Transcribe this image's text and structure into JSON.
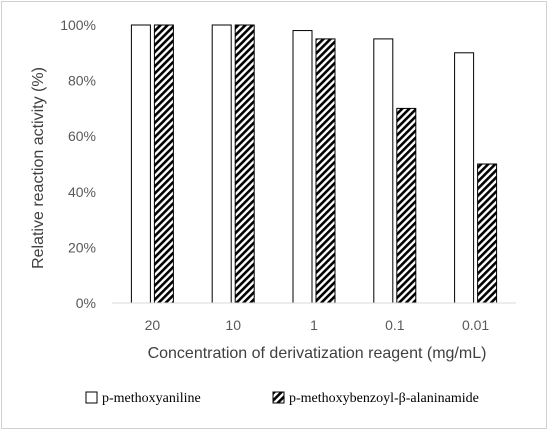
{
  "chart_data": {
    "type": "bar",
    "categories": [
      "20",
      "10",
      "1",
      "0.1",
      "0.01"
    ],
    "series": [
      {
        "name": "p-methoxyaniline",
        "values": [
          100,
          100,
          98,
          95,
          90
        ],
        "pattern": "none",
        "color": "#ffffff"
      },
      {
        "name": "p-methoxybenzoyl-β-alaninamide",
        "values": [
          100,
          100,
          95,
          70,
          50
        ],
        "pattern": "diagonal-hatch",
        "color": "#000000"
      }
    ],
    "xlabel": "Concentration of derivatization reagent (mg/mL)",
    "ylabel": "Relative reaction activity (%)",
    "ylim": [
      0,
      100
    ],
    "yticks": [
      "0%",
      "20%",
      "40%",
      "60%",
      "80%",
      "100%"
    ],
    "legend_position": "bottom",
    "grid": false
  }
}
